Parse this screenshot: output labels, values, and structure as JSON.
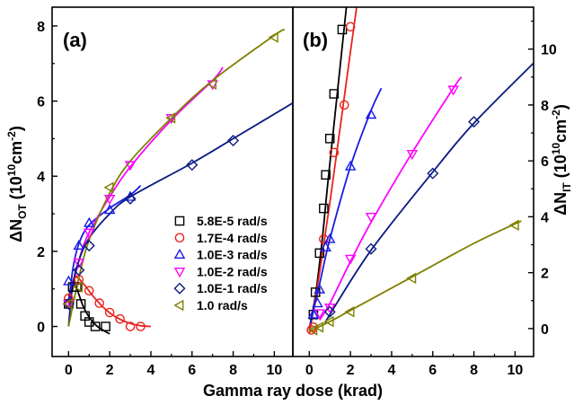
{
  "chart_data": {
    "type": "scatter",
    "xlabel": "Gamma ray dose (krad)",
    "legend_location": "lower-right of panel (a)",
    "panels": [
      {
        "label": "(a)",
        "ylabel": {
          "main": "ΔN",
          "sub": "OT",
          "unit_open": " (10",
          "sup": "10",
          "unit_mid": "cm",
          "unit_sup": "-2",
          "unit_close": ")"
        },
        "xlim": [
          -0.8,
          10.9
        ],
        "ylim": [
          -0.8,
          8.5
        ],
        "xticks": [
          "0",
          "2",
          "4",
          "6",
          "8",
          "10"
        ],
        "yticks": [
          "0",
          "2",
          "4",
          "6",
          "8"
        ],
        "series": [
          {
            "name": "5.8E-5 rad/s",
            "color": "#000000",
            "marker": "square",
            "points": [
              [
                0.0,
                0.6
              ],
              [
                0.2,
                1.05
              ],
              [
                0.4,
                1.05
              ],
              [
                0.6,
                0.6
              ],
              [
                0.8,
                0.28
              ],
              [
                1.0,
                0.12
              ],
              [
                1.3,
                0.0
              ],
              [
                1.8,
                0.0
              ]
            ],
            "fit": [
              [
                0.0,
                0.7
              ],
              [
                0.2,
                1.12
              ],
              [
                0.4,
                1.0
              ],
              [
                0.7,
                0.55
              ],
              [
                1.0,
                0.25
              ],
              [
                1.4,
                0.0
              ],
              [
                2.0,
                -0.2
              ]
            ]
          },
          {
            "name": "1.7E-4 rad/s",
            "color": "#e8231e",
            "marker": "circle",
            "points": [
              [
                0.0,
                0.75
              ],
              [
                0.5,
                1.25
              ],
              [
                1.0,
                0.95
              ],
              [
                1.5,
                0.62
              ],
              [
                2.0,
                0.37
              ],
              [
                2.5,
                0.2
              ],
              [
                3.0,
                0.0
              ],
              [
                3.5,
                0.0
              ]
            ],
            "fit": [
              [
                0.0,
                0.8
              ],
              [
                0.3,
                1.3
              ],
              [
                0.7,
                1.15
              ],
              [
                1.2,
                0.8
              ],
              [
                1.8,
                0.45
              ],
              [
                2.4,
                0.22
              ],
              [
                3.0,
                0.08
              ],
              [
                3.5,
                0.02
              ],
              [
                4.0,
                0.0
              ]
            ]
          },
          {
            "name": "1.0E-3 rad/s",
            "color": "#1a1ae6",
            "marker": "triangle-up",
            "points": [
              [
                0.0,
                1.2
              ],
              [
                0.5,
                2.15
              ],
              [
                1.0,
                2.75
              ],
              [
                2.0,
                3.1
              ],
              [
                3.0,
                3.45
              ]
            ],
            "fit": [
              [
                0.0,
                0.5
              ],
              [
                0.2,
                1.5
              ],
              [
                0.5,
                2.2
              ],
              [
                1.0,
                2.7
              ],
              [
                2.0,
                3.15
              ],
              [
                3.0,
                3.5
              ],
              [
                3.5,
                3.75
              ]
            ]
          },
          {
            "name": "1.0E-2 rad/s",
            "color": "#ff00ff",
            "marker": "triangle-down",
            "points": [
              [
                0.0,
                0.6
              ],
              [
                0.5,
                1.7
              ],
              [
                1.0,
                2.5
              ],
              [
                2.0,
                3.4
              ],
              [
                3.0,
                4.3
              ],
              [
                5.0,
                5.55
              ],
              [
                7.0,
                6.45
              ]
            ],
            "fit": [
              [
                0.0,
                0.5
              ],
              [
                0.5,
                1.75
              ],
              [
                1.0,
                2.5
              ],
              [
                2.0,
                3.45
              ],
              [
                3.0,
                4.25
              ],
              [
                5.0,
                5.5
              ],
              [
                7.0,
                6.55
              ],
              [
                7.5,
                6.9
              ]
            ]
          },
          {
            "name": "1.0E-1 rad/s",
            "color": "#0b1a80",
            "marker": "diamond",
            "points": [
              [
                0.0,
                0.6
              ],
              [
                0.5,
                1.5
              ],
              [
                1.0,
                2.15
              ],
              [
                3.0,
                3.4
              ],
              [
                6.0,
                4.3
              ],
              [
                8.0,
                4.95
              ]
            ],
            "fit": [
              [
                0.0,
                0.0
              ],
              [
                0.2,
                1.1
              ],
              [
                0.5,
                1.75
              ],
              [
                1.0,
                2.35
              ],
              [
                2.0,
                3.0
              ],
              [
                3.0,
                3.45
              ],
              [
                6.0,
                4.35
              ],
              [
                8.0,
                5.0
              ],
              [
                10.9,
                5.95
              ]
            ]
          },
          {
            "name": "1.0 rad/s",
            "color": "#808000",
            "marker": "triangle-left",
            "points": [
              [
                0.0,
                0.6
              ],
              [
                0.5,
                1.05
              ],
              [
                2.0,
                3.7
              ],
              [
                5.0,
                5.55
              ],
              [
                7.0,
                6.45
              ],
              [
                10.0,
                7.7
              ]
            ],
            "fit": [
              [
                0.0,
                0.0
              ],
              [
                0.5,
                1.3
              ],
              [
                1.0,
                2.3
              ],
              [
                2.0,
                3.55
              ],
              [
                3.0,
                4.4
              ],
              [
                5.0,
                5.55
              ],
              [
                7.0,
                6.55
              ],
              [
                10.0,
                7.75
              ],
              [
                10.5,
                7.9
              ]
            ]
          }
        ]
      },
      {
        "label": "(b)",
        "ylabel": {
          "main": "ΔN",
          "sub": "IT",
          "unit_open": " (10",
          "sup": "10",
          "unit_mid": "cm",
          "unit_sup": "-2",
          "unit_close": ")"
        },
        "xlim": [
          -0.8,
          10.9
        ],
        "ylim": [
          -1.0,
          11.5
        ],
        "xticks": [
          "0",
          "2",
          "4",
          "6",
          "8",
          "10"
        ],
        "yticks": [
          "0",
          "2",
          "4",
          "6",
          "8",
          "10"
        ],
        "series": [
          {
            "name": "5.8E-5 rad/s",
            "color": "#000000",
            "marker": "square",
            "points": [
              [
                0.2,
                0.5
              ],
              [
                0.3,
                1.3
              ],
              [
                0.5,
                2.7
              ],
              [
                0.7,
                4.3
              ],
              [
                0.8,
                5.5
              ],
              [
                1.0,
                6.8
              ],
              [
                1.2,
                8.4
              ],
              [
                1.6,
                10.7
              ]
            ],
            "fit": [
              [
                0.0,
                0.0
              ],
              [
                0.3,
                1.2
              ],
              [
                0.6,
                3.0
              ],
              [
                0.9,
                5.2
              ],
              [
                1.2,
                7.3
              ],
              [
                1.5,
                9.4
              ],
              [
                1.8,
                11.5
              ]
            ]
          },
          {
            "name": "1.7E-4 rad/s",
            "color": "#e8231e",
            "marker": "circle",
            "points": [
              [
                0.1,
                -0.05
              ],
              [
                0.2,
                0.05
              ],
              [
                0.7,
                3.2
              ],
              [
                1.2,
                6.3
              ],
              [
                1.7,
                8.0
              ],
              [
                2.0,
                10.8
              ]
            ],
            "fit": [
              [
                0.0,
                -0.2
              ],
              [
                0.5,
                2.0
              ],
              [
                1.0,
                4.5
              ],
              [
                1.5,
                7.2
              ],
              [
                2.0,
                9.9
              ],
              [
                2.3,
                11.5
              ]
            ]
          },
          {
            "name": "1.0E-3 rad/s",
            "color": "#1a1ae6",
            "marker": "triangle-up",
            "points": [
              [
                0.2,
                0.5
              ],
              [
                0.4,
                0.9
              ],
              [
                0.5,
                1.4
              ],
              [
                0.8,
                2.9
              ],
              [
                1.0,
                3.2
              ],
              [
                2.0,
                5.8
              ],
              [
                3.0,
                7.65
              ]
            ],
            "fit": [
              [
                0.0,
                0.0
              ],
              [
                0.5,
                1.6
              ],
              [
                1.0,
                3.2
              ],
              [
                2.0,
                5.8
              ],
              [
                3.0,
                7.8
              ],
              [
                3.5,
                8.6
              ]
            ]
          },
          {
            "name": "1.0E-2 rad/s",
            "color": "#ff00ff",
            "marker": "triangle-down",
            "points": [
              [
                0.5,
                0.55
              ],
              [
                1.0,
                0.75
              ],
              [
                2.0,
                2.5
              ],
              [
                3.0,
                4.0
              ],
              [
                5.0,
                6.25
              ],
              [
                7.0,
                8.55
              ]
            ],
            "fit": [
              [
                0.5,
                0.3
              ],
              [
                1.0,
                0.9
              ],
              [
                2.0,
                2.4
              ],
              [
                3.0,
                3.8
              ],
              [
                5.0,
                6.3
              ],
              [
                7.0,
                8.6
              ],
              [
                7.4,
                9.0
              ]
            ]
          },
          {
            "name": "1.0E-1 rad/s",
            "color": "#0b1a80",
            "marker": "diamond",
            "points": [
              [
                1.0,
                0.6
              ],
              [
                3.0,
                2.85
              ],
              [
                6.0,
                5.55
              ],
              [
                8.0,
                7.4
              ]
            ],
            "fit": [
              [
                0.8,
                0.2
              ],
              [
                1.0,
                0.5
              ],
              [
                3.0,
                2.8
              ],
              [
                6.0,
                5.6
              ],
              [
                8.0,
                7.35
              ],
              [
                10.9,
                9.5
              ]
            ]
          },
          {
            "name": "1.0 rad/s",
            "color": "#808000",
            "marker": "triangle-left",
            "points": [
              [
                0.2,
                -0.05
              ],
              [
                0.5,
                0.05
              ],
              [
                1.0,
                0.25
              ],
              [
                2.0,
                0.6
              ],
              [
                5.0,
                1.8
              ],
              [
                10.0,
                3.7
              ]
            ],
            "fit": [
              [
                0.0,
                -0.1
              ],
              [
                1.0,
                0.25
              ],
              [
                2.0,
                0.65
              ],
              [
                5.0,
                1.85
              ],
              [
                8.0,
                3.05
              ],
              [
                10.3,
                3.85
              ]
            ]
          }
        ]
      }
    ]
  }
}
